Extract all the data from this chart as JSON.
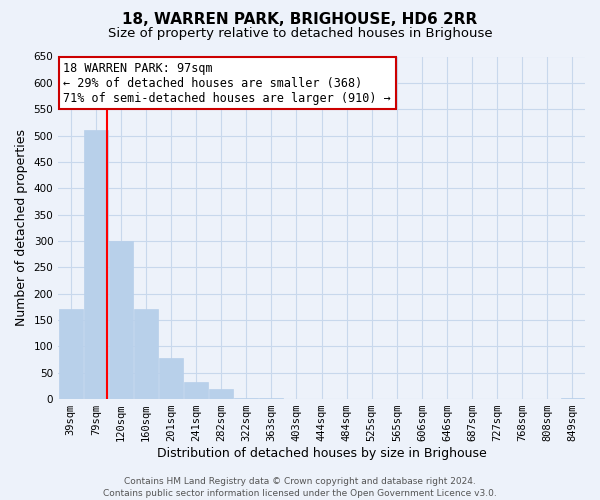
{
  "title": "18, WARREN PARK, BRIGHOUSE, HD6 2RR",
  "subtitle": "Size of property relative to detached houses in Brighouse",
  "xlabel": "Distribution of detached houses by size in Brighouse",
  "ylabel": "Number of detached properties",
  "bar_labels": [
    "39sqm",
    "79sqm",
    "120sqm",
    "160sqm",
    "201sqm",
    "241sqm",
    "282sqm",
    "322sqm",
    "363sqm",
    "403sqm",
    "444sqm",
    "484sqm",
    "525sqm",
    "565sqm",
    "606sqm",
    "646sqm",
    "687sqm",
    "727sqm",
    "768sqm",
    "808sqm",
    "849sqm"
  ],
  "bar_values": [
    170,
    510,
    300,
    170,
    78,
    32,
    20,
    2,
    2,
    0,
    0,
    0,
    0,
    0,
    0,
    0,
    0,
    0,
    0,
    0,
    2
  ],
  "bar_color": "#b8d0ea",
  "bar_edgecolor": "#b8d0ea",
  "grid_color": "#c8d8ec",
  "background_color": "#edf2fa",
  "property_line_x": 1.45,
  "ylim": [
    0,
    650
  ],
  "yticks": [
    0,
    50,
    100,
    150,
    200,
    250,
    300,
    350,
    400,
    450,
    500,
    550,
    600,
    650
  ],
  "annotation_text": "18 WARREN PARK: 97sqm\n← 29% of detached houses are smaller (368)\n71% of semi-detached houses are larger (910) →",
  "annotation_box_facecolor": "#ffffff",
  "annotation_box_edgecolor": "#cc0000",
  "footer_line1": "Contains HM Land Registry data © Crown copyright and database right 2024.",
  "footer_line2": "Contains public sector information licensed under the Open Government Licence v3.0.",
  "title_fontsize": 11,
  "subtitle_fontsize": 9.5,
  "xlabel_fontsize": 9,
  "ylabel_fontsize": 9,
  "tick_fontsize": 7.5,
  "annotation_fontsize": 8.5,
  "footer_fontsize": 6.5
}
